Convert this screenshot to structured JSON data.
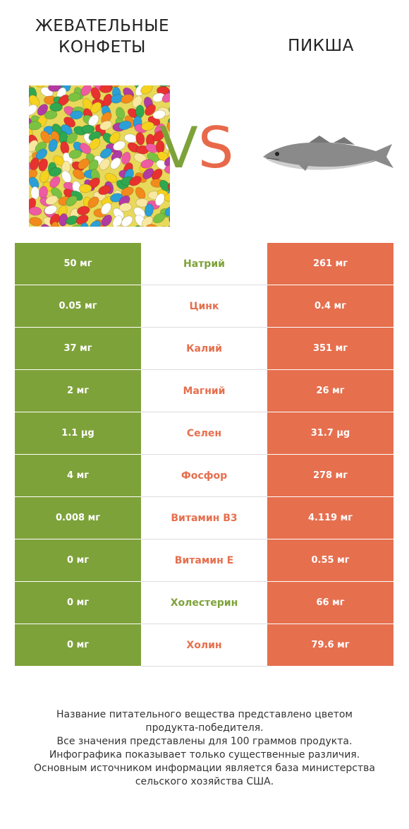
{
  "header": {
    "left_title_line1": "ЖЕВАТЕЛЬНЫЕ",
    "left_title_line2": "КОНФЕТЫ",
    "right_title": "ПИКША",
    "vs_v": "V",
    "vs_s": "S"
  },
  "colors": {
    "left_accent": "#7ea23a",
    "right_accent": "#e66f4e"
  },
  "images": {
    "left": "jelly-beans-image",
    "right": "haddock-fish-image"
  },
  "rows": [
    {
      "left": "50 мг",
      "nutrient": "Натрий",
      "right": "261 мг",
      "winner": "left"
    },
    {
      "left": "0.05 мг",
      "nutrient": "Цинк",
      "right": "0.4 мг",
      "winner": "right"
    },
    {
      "left": "37 мг",
      "nutrient": "Калий",
      "right": "351 мг",
      "winner": "right"
    },
    {
      "left": "2 мг",
      "nutrient": "Магний",
      "right": "26 мг",
      "winner": "right"
    },
    {
      "left": "1.1 µg",
      "nutrient": "Селен",
      "right": "31.7 µg",
      "winner": "right"
    },
    {
      "left": "4 мг",
      "nutrient": "Фосфор",
      "right": "278 мг",
      "winner": "right"
    },
    {
      "left": "0.008 мг",
      "nutrient": "Витамин B3",
      "right": "4.119 мг",
      "winner": "right"
    },
    {
      "left": "0 мг",
      "nutrient": "Витамин E",
      "right": "0.55 мг",
      "winner": "right"
    },
    {
      "left": "0 мг",
      "nutrient": "Холестерин",
      "right": "66 мг",
      "winner": "left"
    },
    {
      "left": "0 мг",
      "nutrient": "Холин",
      "right": "79.6 мг",
      "winner": "right"
    }
  ],
  "footer": {
    "line1": "Название питательного вещества представлено цветом",
    "line2": "продукта-победителя.",
    "line3": "Все значения представлены для 100 граммов продукта.",
    "line4": "Инфографика показывает только существенные различия.",
    "line5": "Основным источником информации является база министерства",
    "line6": "сельского хозяйства США."
  }
}
